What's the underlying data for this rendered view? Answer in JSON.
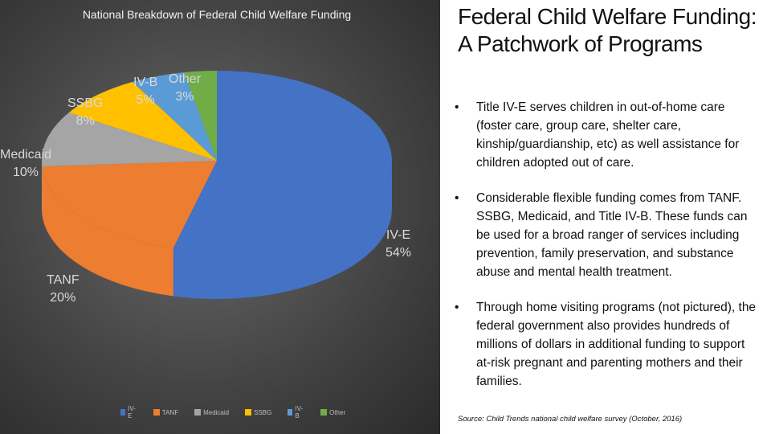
{
  "chart_data": {
    "type": "pie",
    "title": "National Breakdown of Federal Child Welfare Funding",
    "categories": [
      "IV-E",
      "TANF",
      "Medicaid",
      "SSBG",
      "IV-B",
      "Other"
    ],
    "values": [
      54,
      20,
      10,
      8,
      5,
      3
    ],
    "value_labels": [
      "54%",
      "20%",
      "10%",
      "8%",
      "5%",
      "3%"
    ],
    "legend_position": "bottom"
  },
  "colors": {
    "IV-E": "#4472c4",
    "TANF": "#ed7d31",
    "Medicaid": "#a5a5a5",
    "SSBG": "#ffc000",
    "IV-B": "#5b9bd5",
    "Other": "#70ad47"
  },
  "heading": "Federal Child Welfare Funding: A Patchwork of Programs",
  "bullet_char": "•",
  "bullets": [
    "Title IV-E serves children in out-of-home care (foster care, group care, shelter care, kinship/guardianship, etc) as well assistance for children adopted out of care.",
    "Considerable flexible funding comes from TANF. SSBG, Medicaid, and Title IV-B. These funds can be used for a broad ranger of services including prevention, family preservation, and  substance abuse and mental health treatment.",
    "Through home visiting programs (not pictured), the federal government also provides hundreds of millions of dollars in additional funding to support at-risk pregnant and parenting mothers and their families."
  ],
  "source": "Source: Child Trends national child welfare survey (October, 2016)"
}
